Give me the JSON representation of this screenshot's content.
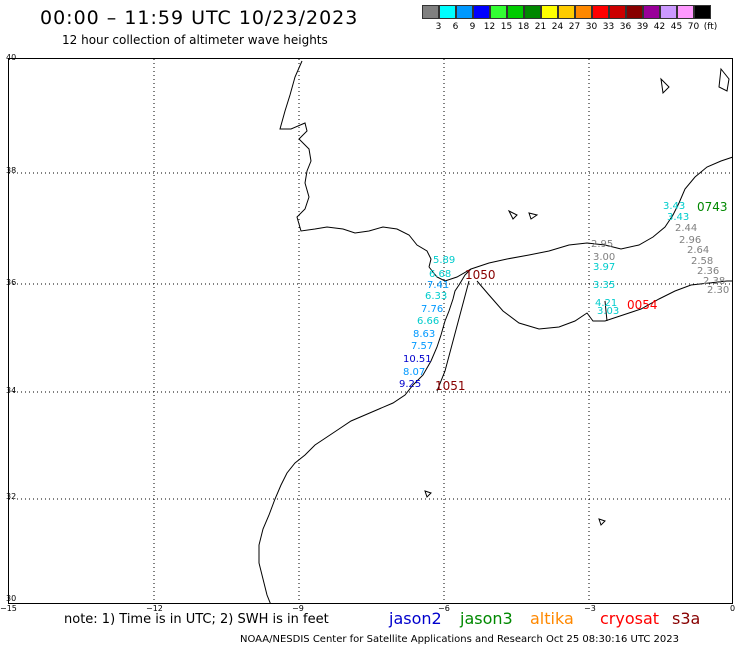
{
  "header": {
    "title": "00:00 – 11:59 UTC 10/23/2023",
    "subtitle": "12 hour collection of altimeter wave heights"
  },
  "legend": {
    "unit_label": "(ft)",
    "bins": [
      {
        "label": "3",
        "color": "#808080"
      },
      {
        "label": "6",
        "color": "#00ffff"
      },
      {
        "label": "9",
        "color": "#0099ff"
      },
      {
        "label": "12",
        "color": "#0000ff"
      },
      {
        "label": "15",
        "color": "#33ff33"
      },
      {
        "label": "18",
        "color": "#00cc00"
      },
      {
        "label": "21",
        "color": "#008800"
      },
      {
        "label": "24",
        "color": "#ffff00"
      },
      {
        "label": "27",
        "color": "#ffcc00"
      },
      {
        "label": "30",
        "color": "#ff8800"
      },
      {
        "label": "33",
        "color": "#ff0000"
      },
      {
        "label": "36",
        "color": "#cc0000"
      },
      {
        "label": "39",
        "color": "#880000"
      },
      {
        "label": "42",
        "color": "#990099"
      },
      {
        "label": "45",
        "color": "#cc99ff"
      },
      {
        "label": "70",
        "color": "#ff99ff"
      },
      {
        "label": "",
        "color": "#000000"
      }
    ]
  },
  "axes": {
    "lon_ticks": [
      "−15",
      "−12",
      "−9",
      "−6",
      "−3",
      "0"
    ],
    "lat_ticks": [
      "40",
      "38",
      "36",
      "34",
      "32",
      "30"
    ]
  },
  "observations": [
    {
      "text": "5.89",
      "color": "#00cccc"
    },
    {
      "text": "6.68",
      "color": "#00cccc"
    },
    {
      "text": "7.41",
      "color": "#0099ff"
    },
    {
      "text": "6.33",
      "color": "#00cccc"
    },
    {
      "text": "7.76",
      "color": "#0099ff"
    },
    {
      "text": "6.66",
      "color": "#00cccc"
    },
    {
      "text": "8.63",
      "color": "#0099ff"
    },
    {
      "text": "7.57",
      "color": "#0099ff"
    },
    {
      "text": "10.51",
      "color": "#0000cc"
    },
    {
      "text": "8.07",
      "color": "#0099ff"
    },
    {
      "text": "9.25",
      "color": "#0000cc"
    },
    {
      "text": "2.95",
      "color": "#808080"
    },
    {
      "text": "3.00",
      "color": "#808080"
    },
    {
      "text": "3.97",
      "color": "#00cccc"
    },
    {
      "text": "3.35",
      "color": "#00cccc"
    },
    {
      "text": "4.21",
      "color": "#00cccc"
    },
    {
      "text": "3.03",
      "color": "#00cccc"
    },
    {
      "text": "3.43",
      "color": "#00cccc"
    },
    {
      "text": "3.43",
      "color": "#00cccc"
    },
    {
      "text": "2.44",
      "color": "#808080"
    },
    {
      "text": "2.96",
      "color": "#808080"
    },
    {
      "text": "2.64",
      "color": "#808080"
    },
    {
      "text": "2.58",
      "color": "#808080"
    },
    {
      "text": "2.36",
      "color": "#808080"
    },
    {
      "text": "2.38",
      "color": "#808080"
    },
    {
      "text": "2.30",
      "color": "#808080"
    }
  ],
  "passes": [
    {
      "time": "1050",
      "color": "#880000"
    },
    {
      "time": "1051",
      "color": "#880000"
    },
    {
      "time": "0054",
      "color": "#ff0000"
    },
    {
      "time": "0743",
      "color": "#008800"
    }
  ],
  "note": "note: 1) Time is in UTC; 2) SWH is in feet",
  "satellites": [
    {
      "name": "jason2",
      "color": "#0000cc"
    },
    {
      "name": "jason3",
      "color": "#008800"
    },
    {
      "name": "altika",
      "color": "#ff8800"
    },
    {
      "name": "cryosat",
      "color": "#ff0000"
    },
    {
      "name": "s3a",
      "color": "#880000"
    }
  ],
  "footer": "NOAA/NESDIS Center for Satellite Applications and Research    Oct 25 08:30:16 UTC 2023"
}
